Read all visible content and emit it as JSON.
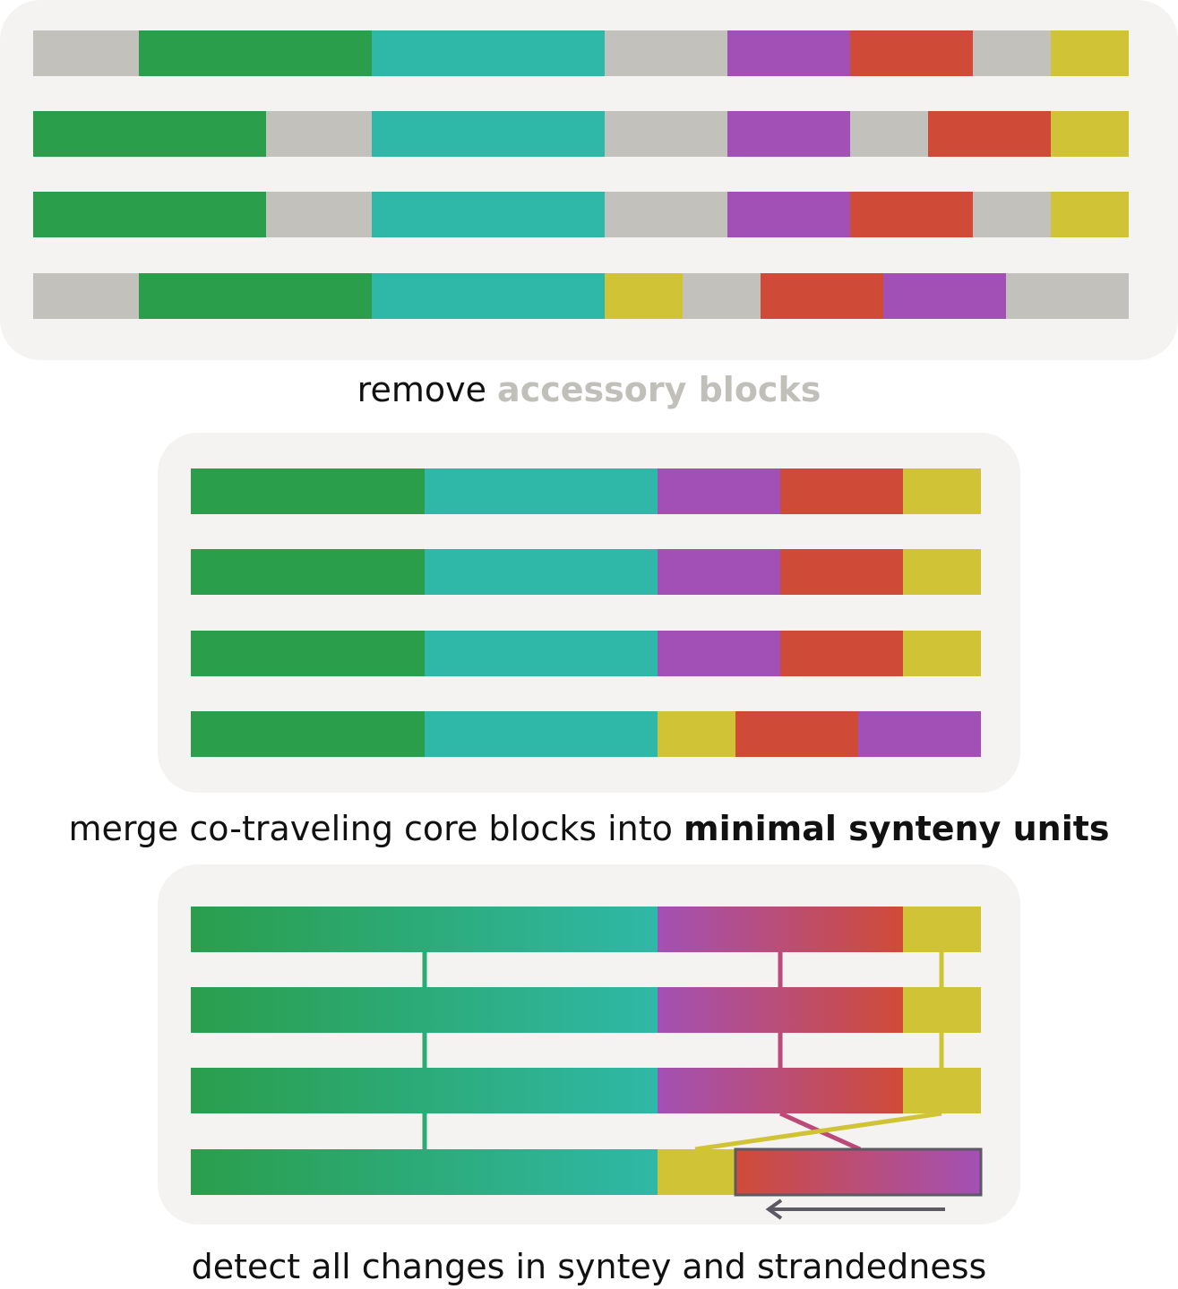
{
  "colors": {
    "panel": "#f4f3f1",
    "accessory": "#c2c1bc",
    "green": "#2a9e4b",
    "teal": "#2fb8a7",
    "purple": "#a350b6",
    "red": "#d04b37",
    "yellow": "#d0c436",
    "arrow": "#5b5963"
  },
  "captions": {
    "step1_prefix": "remove ",
    "step1_highlight": "accessory blocks",
    "step2_prefix": "merge co-traveling core blocks into ",
    "step2_highlight": "minimal synteny units",
    "step3": "detect all changes in syntey and strandedness"
  },
  "panels": {
    "genomes_with_accessory": [
      [
        "accessory",
        "green",
        "teal",
        "accessory",
        "purple",
        "red",
        "accessory",
        "yellow"
      ],
      [
        "green",
        "accessory",
        "teal",
        "accessory",
        "purple",
        "accessory",
        "red",
        "yellow"
      ],
      [
        "green",
        "accessory",
        "teal",
        "accessory",
        "purple",
        "red",
        "accessory",
        "yellow"
      ],
      [
        "accessory",
        "green",
        "teal",
        "yellow",
        "accessory",
        "red",
        "purple",
        "accessory"
      ]
    ],
    "core_blocks": [
      [
        "green",
        "teal",
        "purple",
        "red",
        "yellow"
      ],
      [
        "green",
        "teal",
        "purple",
        "red",
        "yellow"
      ],
      [
        "green",
        "teal",
        "purple",
        "red",
        "yellow"
      ],
      [
        "green",
        "teal",
        "yellow",
        "red",
        "purple"
      ]
    ],
    "synteny_units": [
      [
        "green-teal",
        "purple-red",
        "yellow"
      ],
      [
        "green-teal",
        "purple-red",
        "yellow"
      ],
      [
        "green-teal",
        "purple-red",
        "yellow"
      ],
      [
        "green-teal",
        "yellow",
        "red-purple (inverted)"
      ]
    ]
  }
}
